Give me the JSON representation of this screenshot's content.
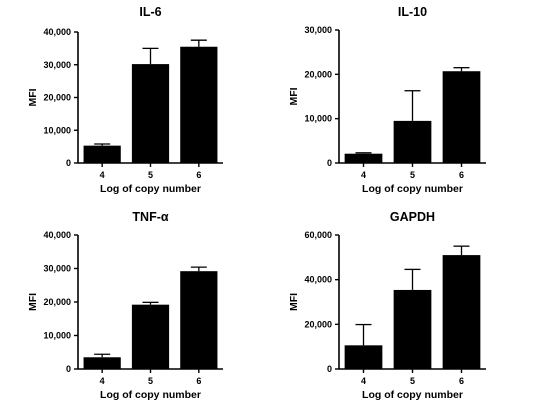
{
  "chart_data": [
    {
      "type": "bar",
      "title": "IL-6",
      "xlabel": "Log of copy number",
      "ylabel": "MFI",
      "categories": [
        "4",
        "5",
        "6"
      ],
      "values": [
        5300,
        30200,
        35500
      ],
      "error": [
        500,
        4800,
        2000
      ],
      "ylim": [
        0,
        40000
      ],
      "yticks": [
        0,
        10000,
        20000,
        30000,
        40000
      ],
      "ytick_labels": [
        "0",
        "10,000",
        "20,000",
        "30,000",
        "40,000"
      ],
      "bar_color": "#000000",
      "grid": false,
      "error_bars": "up"
    },
    {
      "type": "bar",
      "title": "IL-10",
      "xlabel": "Log of copy number",
      "ylabel": "MFI",
      "categories": [
        "4",
        "5",
        "6"
      ],
      "values": [
        2100,
        9500,
        20700
      ],
      "error": [
        200,
        6800,
        800
      ],
      "ylim": [
        0,
        30000
      ],
      "yticks": [
        0,
        10000,
        20000,
        30000
      ],
      "ytick_labels": [
        "0",
        "10,000",
        "20,000",
        "30,000"
      ],
      "bar_color": "#000000",
      "grid": false,
      "error_bars": "up"
    },
    {
      "type": "bar",
      "title": "TNF-α",
      "xlabel": "Log of copy number",
      "ylabel": "MFI",
      "categories": [
        "4",
        "5",
        "6"
      ],
      "values": [
        3500,
        19200,
        29200
      ],
      "error": [
        900,
        700,
        1200
      ],
      "ylim": [
        0,
        40000
      ],
      "yticks": [
        0,
        10000,
        20000,
        30000,
        40000
      ],
      "ytick_labels": [
        "0",
        "10,000",
        "20,000",
        "30,000",
        "40,000"
      ],
      "bar_color": "#000000",
      "grid": false,
      "error_bars": "up"
    },
    {
      "type": "bar",
      "title": "GAPDH",
      "xlabel": "Log of copy number",
      "ylabel": "MFI",
      "categories": [
        "4",
        "5",
        "6"
      ],
      "values": [
        10600,
        35400,
        51000
      ],
      "error": [
        9300,
        9200,
        4000
      ],
      "ylim": [
        0,
        60000
      ],
      "yticks": [
        0,
        20000,
        40000,
        60000
      ],
      "ytick_labels": [
        "0",
        "20,000",
        "40,000",
        "60,000"
      ],
      "bar_color": "#000000",
      "grid": false,
      "error_bars": "up"
    }
  ]
}
